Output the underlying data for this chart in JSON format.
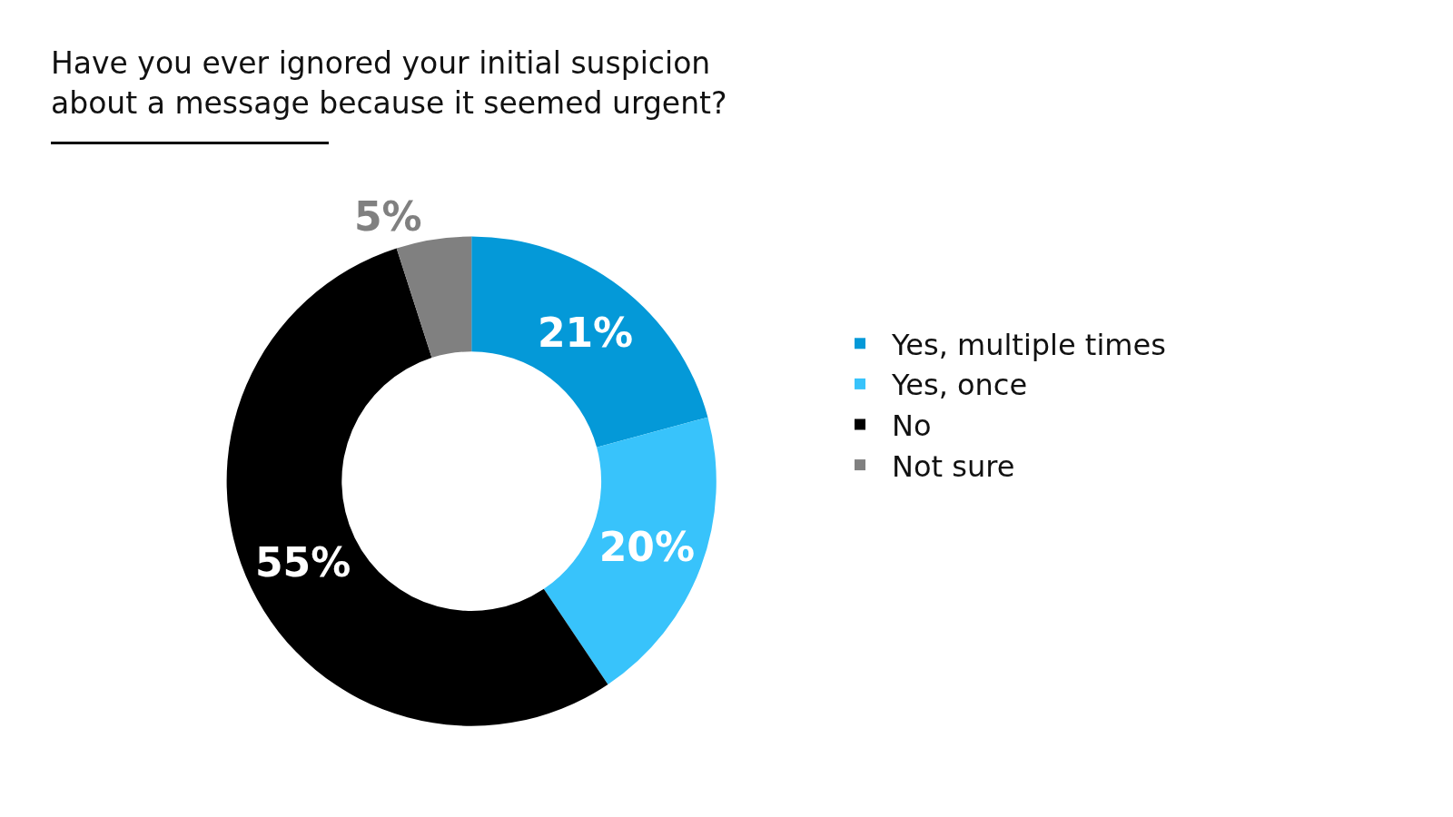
{
  "chart_data": {
    "type": "donut",
    "title": "Have you ever ignored your initial suspicion about a message because it seemed urgent?",
    "categories": [
      "Yes, multiple times",
      "Yes, once",
      "No",
      "Not sure"
    ],
    "values": [
      21,
      20,
      55,
      5
    ],
    "value_labels": [
      "21%",
      "20%",
      "55%",
      "5%"
    ],
    "colors": [
      "#0499d8",
      "#38c3fb",
      "#000000",
      "#808080"
    ],
    "legend": "right"
  }
}
